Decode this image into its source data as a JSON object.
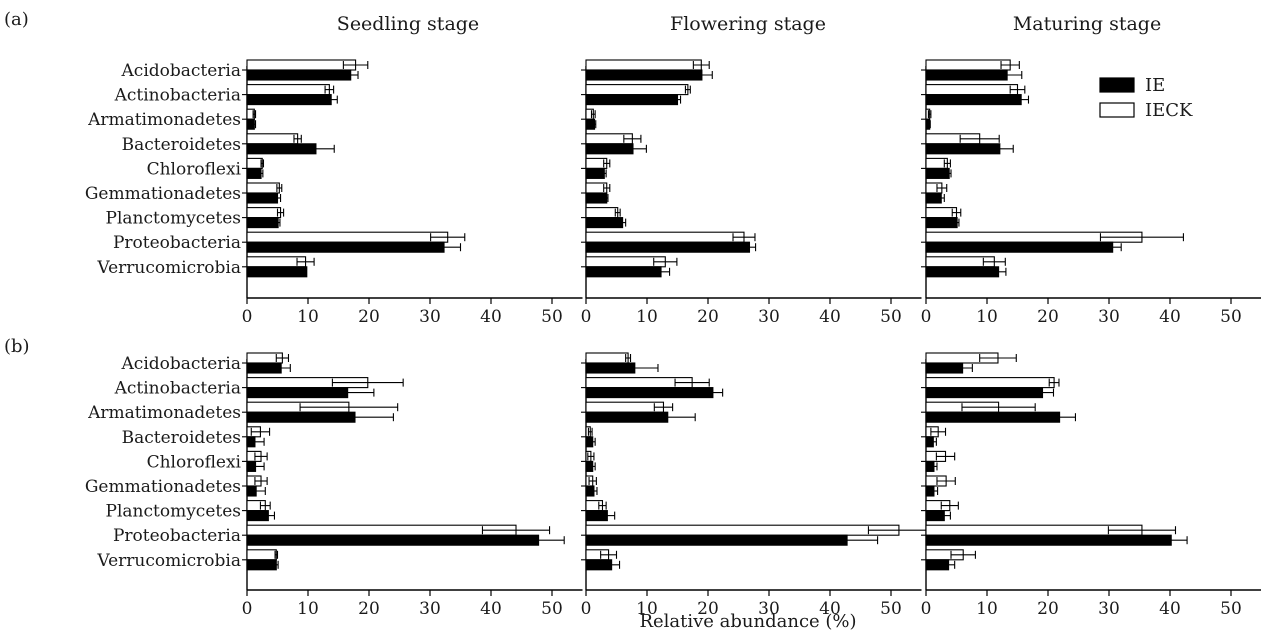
{
  "figure": {
    "panel_labels": [
      "(a)",
      "(b)"
    ],
    "stage_titles": [
      "Seedling stage",
      "Flowering stage",
      "Maturing stage"
    ],
    "xlabel": "Relative abundance (%)",
    "legend": {
      "position": "top-right of first row, third panel",
      "entries": [
        "IE",
        "IECK"
      ]
    },
    "colors": {
      "IE": "#000000",
      "IECK": "#ffffff",
      "stroke": "#000000"
    }
  },
  "chart_data": [
    {
      "type": "bar",
      "orientation": "horizontal",
      "row": "(a)",
      "stage": "Seedling stage",
      "categories": [
        "Acidobacteria",
        "Actinobacteria",
        "Armatimonadetes",
        "Bacteroidetes",
        "Chloroflexi",
        "Gemmationadetes",
        "Planctomycetes",
        "Proteobacteria",
        "Verrucomicrobia"
      ],
      "series": [
        {
          "name": "IECK",
          "values": [
            17.8,
            13.5,
            1.2,
            8.3,
            2.5,
            5.3,
            5.5,
            32.9,
            9.6
          ],
          "errors": [
            2.0,
            0.7,
            0.2,
            0.6,
            0.2,
            0.4,
            0.5,
            2.8,
            1.4
          ]
        },
        {
          "name": "IE",
          "values": [
            17.0,
            13.8,
            1.2,
            11.3,
            2.3,
            5.0,
            5.1,
            32.3,
            9.8
          ],
          "errors": [
            1.2,
            1.0,
            0.2,
            3.0,
            0.3,
            0.5,
            0.3,
            2.7,
            0.0
          ]
        }
      ],
      "xlim": [
        0,
        55
      ],
      "xticks": [
        0,
        10,
        20,
        30,
        40,
        50
      ]
    },
    {
      "type": "bar",
      "orientation": "horizontal",
      "row": "(a)",
      "stage": "Flowering stage",
      "categories": [
        "Acidobacteria",
        "Actinobacteria",
        "Armatimonadetes",
        "Bacteroidetes",
        "Chloroflexi",
        "Gemmationadetes",
        "Planctomycetes",
        "Proteobacteria",
        "Verrucomicrobia"
      ],
      "series": [
        {
          "name": "IECK",
          "values": [
            18.9,
            16.7,
            1.2,
            7.6,
            3.4,
            3.4,
            5.2,
            25.9,
            13.0
          ],
          "errors": [
            1.3,
            0.4,
            0.3,
            1.4,
            0.5,
            0.5,
            0.4,
            1.8,
            1.9
          ]
        },
        {
          "name": "IE",
          "values": [
            19.0,
            15.0,
            1.4,
            7.7,
            3.0,
            3.4,
            6.0,
            26.8,
            12.3
          ],
          "errors": [
            1.7,
            0.5,
            0.2,
            2.2,
            0.3,
            0.2,
            0.5,
            1.0,
            1.4
          ]
        }
      ],
      "xlim": [
        0,
        55
      ],
      "xticks": [
        0,
        10,
        20,
        30,
        40,
        50
      ]
    },
    {
      "type": "bar",
      "orientation": "horizontal",
      "row": "(a)",
      "stage": "Maturing stage",
      "categories": [
        "Acidobacteria",
        "Actinobacteria",
        "Armatimonadetes",
        "Bacteroidetes",
        "Chloroflexi",
        "Gemmationadetes",
        "Planctomycetes",
        "Proteobacteria",
        "Verrucomicrobia"
      ],
      "series": [
        {
          "name": "IECK",
          "values": [
            13.8,
            15.0,
            0.6,
            8.8,
            3.5,
            2.6,
            5.0,
            35.4,
            11.2
          ],
          "errors": [
            1.5,
            1.2,
            0.2,
            3.2,
            0.5,
            0.8,
            0.7,
            6.8,
            1.8
          ]
        },
        {
          "name": "IE",
          "values": [
            13.3,
            15.6,
            0.6,
            12.1,
            3.8,
            2.5,
            5.1,
            30.6,
            11.9
          ],
          "errors": [
            2.4,
            1.2,
            0.1,
            2.2,
            0.3,
            0.5,
            0.3,
            1.4,
            1.2
          ]
        }
      ],
      "xlim": [
        0,
        55
      ],
      "xticks": [
        0,
        10,
        20,
        30,
        40,
        50
      ]
    },
    {
      "type": "bar",
      "orientation": "horizontal",
      "row": "(b)",
      "stage": "Seedling stage",
      "categories": [
        "Acidobacteria",
        "Actinobacteria",
        "Armatimonadetes",
        "Bacteroidetes",
        "Chloroflexi",
        "Gemmationadetes",
        "Planctomycetes",
        "Proteobacteria",
        "Verrucomicrobia"
      ],
      "series": [
        {
          "name": "IECK",
          "values": [
            5.8,
            19.8,
            16.7,
            2.2,
            2.3,
            2.3,
            3.0,
            44.1,
            4.8
          ],
          "errors": [
            1.0,
            5.8,
            8.0,
            1.5,
            1.0,
            1.0,
            0.8,
            5.5,
            0.2
          ]
        },
        {
          "name": "IE",
          "values": [
            5.6,
            16.5,
            17.7,
            1.3,
            1.4,
            1.5,
            3.5,
            47.8,
            4.8
          ],
          "errors": [
            1.5,
            4.3,
            6.3,
            1.5,
            1.4,
            1.5,
            1.0,
            4.2,
            0.3
          ]
        }
      ],
      "xlim": [
        0,
        55
      ],
      "xticks": [
        0,
        10,
        20,
        30,
        40,
        50
      ]
    },
    {
      "type": "bar",
      "orientation": "horizontal",
      "row": "(b)",
      "stage": "Flowering stage",
      "categories": [
        "Acidobacteria",
        "Actinobacteria",
        "Armatimonadetes",
        "Bacteroidetes",
        "Chloroflexi",
        "Gemmationadetes",
        "Planctomycetes",
        "Proteobacteria",
        "Verrucomicrobia"
      ],
      "series": [
        {
          "name": "IECK",
          "values": [
            6.9,
            17.4,
            12.7,
            0.7,
            0.8,
            1.1,
            2.7,
            51.3,
            3.7
          ],
          "errors": [
            0.4,
            2.8,
            1.5,
            0.3,
            0.5,
            0.6,
            0.6,
            5.0,
            1.3
          ]
        },
        {
          "name": "IE",
          "values": [
            8.0,
            20.8,
            13.4,
            1.1,
            1.1,
            1.3,
            3.5,
            42.8,
            4.2
          ],
          "errors": [
            3.8,
            1.6,
            4.5,
            0.4,
            0.4,
            0.5,
            1.2,
            5.0,
            1.3
          ]
        }
      ],
      "xlim": [
        0,
        55
      ],
      "xticks": [
        0,
        10,
        20,
        30,
        40,
        50
      ]
    },
    {
      "type": "bar",
      "orientation": "horizontal",
      "row": "(b)",
      "stage": "Maturing stage",
      "categories": [
        "Acidobacteria",
        "Actinobacteria",
        "Armatimonadetes",
        "Bacteroidetes",
        "Chloroflexi",
        "Gemmationadetes",
        "Planctomycetes",
        "Proteobacteria",
        "Verrucomicrobia"
      ],
      "series": [
        {
          "name": "IECK",
          "values": [
            11.8,
            21.0,
            11.9,
            2.0,
            3.2,
            3.3,
            3.9,
            35.4,
            6.1
          ],
          "errors": [
            3.0,
            0.8,
            6.0,
            1.2,
            1.5,
            1.5,
            1.4,
            5.5,
            2.0
          ]
        },
        {
          "name": "IE",
          "values": [
            6.0,
            19.1,
            21.9,
            1.2,
            1.3,
            1.3,
            3.0,
            40.2,
            3.7
          ],
          "errors": [
            1.6,
            1.8,
            2.6,
            0.5,
            0.5,
            0.6,
            1.0,
            2.6,
            1.0
          ]
        }
      ],
      "xlim": [
        0,
        55
      ],
      "xticks": [
        0,
        10,
        20,
        30,
        40,
        50
      ]
    }
  ]
}
